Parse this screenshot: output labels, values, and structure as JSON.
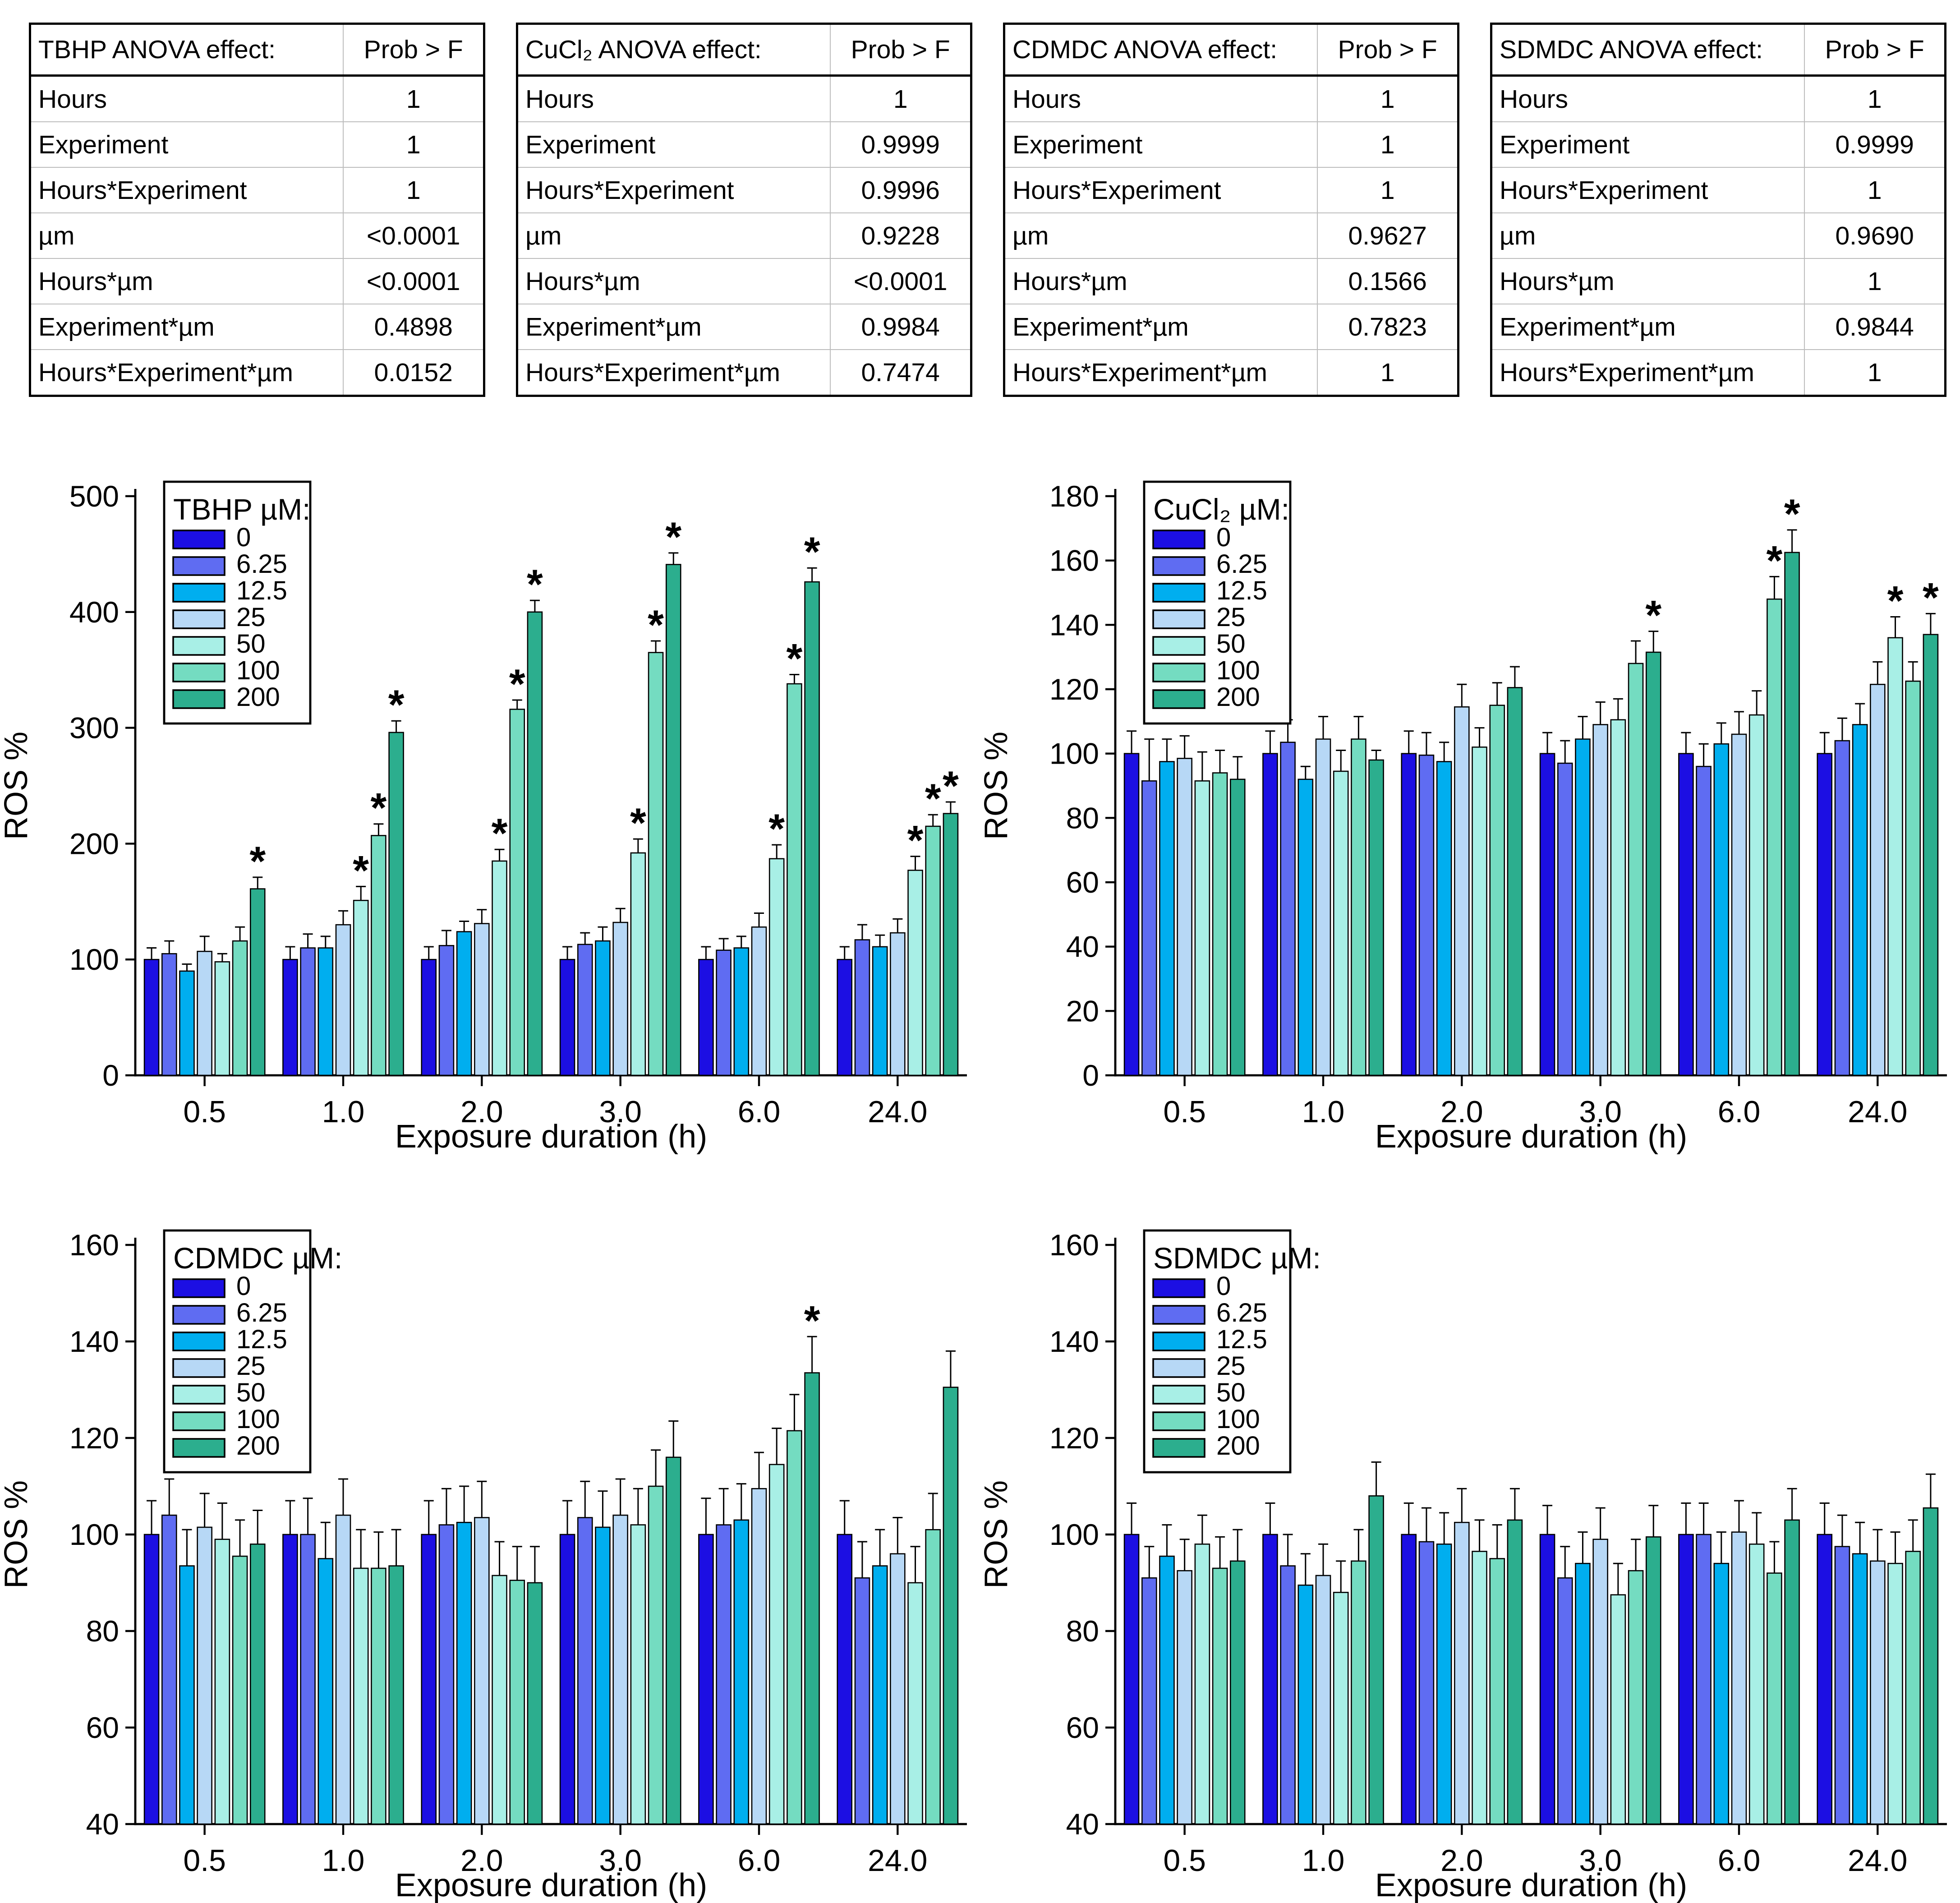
{
  "figure": {
    "background": "#ffffff",
    "text_color": "#000000"
  },
  "style": {
    "series_colors": [
      "#1c0fe3",
      "#5f6cf2",
      "#00aeef",
      "#b7d8f6",
      "#a8efe6",
      "#74dcc1",
      "#2cae8e"
    ],
    "bar_outline": "#000000",
    "axis_color": "#000000",
    "error_bar_color": "#000000",
    "table_border": "#000000",
    "table_grid": "#bdbdbd",
    "sig_marker": "*"
  },
  "anova_tables": [
    {
      "title": "TBHP ANOVA effect:",
      "prob_header": "Prob > F",
      "rows": [
        {
          "effect": "Hours",
          "value": "1"
        },
        {
          "effect": "Experiment",
          "value": "1"
        },
        {
          "effect": "Hours*Experiment",
          "value": "1"
        },
        {
          "effect": "µm",
          "value": "<0.0001"
        },
        {
          "effect": "Hours*µm",
          "value": "<0.0001"
        },
        {
          "effect": "Experiment*µm",
          "value": "0.4898"
        },
        {
          "effect": "Hours*Experiment*µm",
          "value": "0.0152"
        }
      ]
    },
    {
      "title": "CuCl₂ ANOVA effect:",
      "prob_header": "Prob > F",
      "rows": [
        {
          "effect": "Hours",
          "value": "1"
        },
        {
          "effect": "Experiment",
          "value": "0.9999"
        },
        {
          "effect": "Hours*Experiment",
          "value": "0.9996"
        },
        {
          "effect": "µm",
          "value": "0.9228"
        },
        {
          "effect": "Hours*µm",
          "value": "<0.0001"
        },
        {
          "effect": "Experiment*µm",
          "value": "0.9984"
        },
        {
          "effect": "Hours*Experiment*µm",
          "value": "0.7474"
        }
      ]
    },
    {
      "title": "CDMDC ANOVA effect:",
      "prob_header": "Prob > F",
      "rows": [
        {
          "effect": "Hours",
          "value": "1"
        },
        {
          "effect": "Experiment",
          "value": "1"
        },
        {
          "effect": "Hours*Experiment",
          "value": "1"
        },
        {
          "effect": "µm",
          "value": "0.9627"
        },
        {
          "effect": "Hours*µm",
          "value": "0.1566"
        },
        {
          "effect": "Experiment*µm",
          "value": "0.7823"
        },
        {
          "effect": "Hours*Experiment*µm",
          "value": "1"
        }
      ]
    },
    {
      "title": "SDMDC ANOVA effect:",
      "prob_header": "Prob > F",
      "rows": [
        {
          "effect": "Hours",
          "value": "1"
        },
        {
          "effect": "Experiment",
          "value": "0.9999"
        },
        {
          "effect": "Hours*Experiment",
          "value": "1"
        },
        {
          "effect": "µm",
          "value": "0.9690"
        },
        {
          "effect": "Hours*µm",
          "value": "1"
        },
        {
          "effect": "Experiment*µm",
          "value": "0.9844"
        },
        {
          "effect": "Hours*Experiment*µm",
          "value": "1"
        }
      ]
    }
  ],
  "chart_data": [
    {
      "type": "bar",
      "legend_title": "TBHP µM:",
      "xlabel": "Exposure duration (h)",
      "ylabel": "ROS %",
      "ylim": [
        0,
        500
      ],
      "yticks": [
        0,
        100,
        200,
        300,
        400,
        500
      ],
      "grid": false,
      "legend_position": "top-left-inside",
      "categories": [
        "0.5",
        "1.0",
        "2.0",
        "3.0",
        "6.0",
        "24.0"
      ],
      "series": [
        {
          "name": "0",
          "values": [
            100,
            100,
            100,
            100,
            100,
            100
          ],
          "errors": [
            10,
            11,
            11,
            11,
            11,
            11
          ],
          "sig": [
            0,
            0,
            0,
            0,
            0,
            0
          ]
        },
        {
          "name": "6.25",
          "values": [
            105,
            110,
            112,
            113,
            108,
            117
          ],
          "errors": [
            11,
            12,
            13,
            10,
            10,
            13
          ],
          "sig": [
            0,
            0,
            0,
            0,
            0,
            0
          ]
        },
        {
          "name": "12.5",
          "values": [
            90,
            110,
            124,
            116,
            110,
            111
          ],
          "errors": [
            6,
            10,
            9,
            12,
            10,
            10
          ],
          "sig": [
            0,
            0,
            0,
            0,
            0,
            0
          ]
        },
        {
          "name": "25",
          "values": [
            107,
            130,
            131,
            132,
            128,
            123
          ],
          "errors": [
            13,
            12,
            12,
            12,
            12,
            12
          ],
          "sig": [
            0,
            0,
            0,
            0,
            0,
            0
          ]
        },
        {
          "name": "50",
          "values": [
            98,
            151,
            185,
            192,
            187,
            177
          ],
          "errors": [
            7,
            12,
            10,
            12,
            12,
            12
          ],
          "sig": [
            0,
            1,
            1,
            1,
            1,
            1
          ]
        },
        {
          "name": "100",
          "values": [
            116,
            207,
            316,
            365,
            338,
            215
          ],
          "errors": [
            12,
            10,
            8,
            10,
            8,
            10
          ],
          "sig": [
            0,
            1,
            1,
            1,
            1,
            1
          ]
        },
        {
          "name": "200",
          "values": [
            161,
            296,
            400,
            441,
            426,
            226
          ],
          "errors": [
            10,
            10,
            10,
            10,
            12,
            10
          ],
          "sig": [
            1,
            1,
            1,
            1,
            1,
            1
          ]
        }
      ]
    },
    {
      "type": "bar",
      "legend_title": "CuCl₂ µM:",
      "xlabel": "Exposure duration (h)",
      "ylabel": "ROS %",
      "ylim": [
        0,
        180
      ],
      "yticks": [
        0,
        20,
        40,
        60,
        80,
        100,
        120,
        140,
        160,
        180
      ],
      "grid": false,
      "legend_position": "top-left-inside",
      "categories": [
        "0.5",
        "1.0",
        "2.0",
        "3.0",
        "6.0",
        "24.0"
      ],
      "series": [
        {
          "name": "0",
          "values": [
            100,
            100,
            100,
            100,
            100,
            100
          ],
          "errors": [
            7,
            7,
            7,
            6.5,
            6.5,
            6.5
          ],
          "sig": [
            0,
            0,
            0,
            0,
            0,
            0
          ]
        },
        {
          "name": "6.25",
          "values": [
            91.5,
            103.5,
            99.5,
            97,
            96,
            104
          ],
          "errors": [
            13,
            7,
            7,
            7,
            7,
            7
          ],
          "sig": [
            0,
            0,
            0,
            0,
            0,
            0
          ]
        },
        {
          "name": "12.5",
          "values": [
            97.5,
            92,
            97.5,
            104.5,
            103,
            109
          ],
          "errors": [
            7,
            4,
            6,
            7,
            6.5,
            6.5
          ],
          "sig": [
            0,
            0,
            0,
            0,
            0,
            0
          ]
        },
        {
          "name": "25",
          "values": [
            98.5,
            104.5,
            114.5,
            109,
            106,
            121.5
          ],
          "errors": [
            7,
            7,
            7,
            7,
            7,
            7
          ],
          "sig": [
            0,
            0,
            0,
            0,
            0,
            0
          ]
        },
        {
          "name": "50",
          "values": [
            91.5,
            94.5,
            102,
            110.5,
            112,
            136
          ],
          "errors": [
            9,
            6.5,
            6,
            6.5,
            7.5,
            6.5
          ],
          "sig": [
            0,
            0,
            0,
            0,
            0,
            1
          ]
        },
        {
          "name": "100",
          "values": [
            94,
            104.5,
            115,
            128,
            148,
            122.5
          ],
          "errors": [
            7,
            7,
            7,
            7,
            7,
            6
          ],
          "sig": [
            0,
            0,
            0,
            0,
            1,
            0
          ]
        },
        {
          "name": "200",
          "values": [
            92,
            98,
            120.5,
            131.5,
            162.5,
            137
          ],
          "errors": [
            7,
            3,
            6.5,
            6.5,
            7,
            6.5
          ],
          "sig": [
            0,
            0,
            0,
            1,
            1,
            1
          ]
        }
      ]
    },
    {
      "type": "bar",
      "legend_title": "CDMDC µM:",
      "xlabel": "Exposure duration (h)",
      "ylabel": "ROS %",
      "ylim": [
        40,
        160
      ],
      "yticks": [
        40,
        60,
        80,
        100,
        120,
        140,
        160
      ],
      "grid": false,
      "legend_position": "top-left-inside",
      "categories": [
        "0.5",
        "1.0",
        "2.0",
        "3.0",
        "6.0",
        "24.0"
      ],
      "series": [
        {
          "name": "0",
          "values": [
            100,
            100,
            100,
            100,
            100,
            100
          ],
          "errors": [
            7,
            7,
            7,
            7,
            7.5,
            7
          ],
          "sig": [
            0,
            0,
            0,
            0,
            0,
            0
          ]
        },
        {
          "name": "6.25",
          "values": [
            104,
            100,
            102,
            103.5,
            102,
            91
          ],
          "errors": [
            7.5,
            7.5,
            7.5,
            7.5,
            7.5,
            7.5
          ],
          "sig": [
            0,
            0,
            0,
            0,
            0,
            0
          ]
        },
        {
          "name": "12.5",
          "values": [
            93.5,
            95,
            102.5,
            101.5,
            103,
            93.5
          ],
          "errors": [
            7.5,
            7.5,
            7.5,
            7.5,
            7.5,
            7.5
          ],
          "sig": [
            0,
            0,
            0,
            0,
            0,
            0
          ]
        },
        {
          "name": "25",
          "values": [
            101.5,
            104,
            103.5,
            104,
            109.5,
            96
          ],
          "errors": [
            7,
            7.5,
            7.5,
            7.5,
            7.5,
            7.5
          ],
          "sig": [
            0,
            0,
            0,
            0,
            0,
            0
          ]
        },
        {
          "name": "50",
          "values": [
            99,
            93,
            91.5,
            102,
            114.5,
            90
          ],
          "errors": [
            7.5,
            8,
            7,
            7.5,
            7.5,
            7.5
          ],
          "sig": [
            0,
            0,
            0,
            0,
            0,
            0
          ]
        },
        {
          "name": "100",
          "values": [
            95.5,
            93,
            90.5,
            110,
            121.5,
            101
          ],
          "errors": [
            7.5,
            7.5,
            7,
            7.5,
            7.5,
            7.5
          ],
          "sig": [
            0,
            0,
            0,
            0,
            0,
            0
          ]
        },
        {
          "name": "200",
          "values": [
            98,
            93.5,
            90,
            116,
            133.5,
            130.5
          ],
          "errors": [
            7,
            7.5,
            7.5,
            7.5,
            7.5,
            7.5
          ],
          "sig": [
            0,
            0,
            0,
            0,
            1,
            0
          ]
        }
      ]
    },
    {
      "type": "bar",
      "legend_title": "SDMDC µM:",
      "xlabel": "Exposure duration (h)",
      "ylabel": "ROS %",
      "ylim": [
        40,
        160
      ],
      "yticks": [
        40,
        60,
        80,
        100,
        120,
        140,
        160
      ],
      "grid": false,
      "legend_position": "top-left-inside",
      "categories": [
        "0.5",
        "1.0",
        "2.0",
        "3.0",
        "6.0",
        "24.0"
      ],
      "series": [
        {
          "name": "0",
          "values": [
            100,
            100,
            100,
            100,
            100,
            100
          ],
          "errors": [
            6.5,
            6.5,
            6.5,
            6,
            6.5,
            6.5
          ],
          "sig": [
            0,
            0,
            0,
            0,
            0,
            0
          ]
        },
        {
          "name": "6.25",
          "values": [
            91,
            93.5,
            98.5,
            91,
            100,
            97.5
          ],
          "errors": [
            6.5,
            6.5,
            7,
            6.5,
            6.5,
            6.5
          ],
          "sig": [
            0,
            0,
            0,
            0,
            0,
            0
          ]
        },
        {
          "name": "12.5",
          "values": [
            95.5,
            89.5,
            98,
            94,
            94,
            96
          ],
          "errors": [
            6.5,
            6.5,
            6.5,
            6.5,
            6.5,
            6.5
          ],
          "sig": [
            0,
            0,
            0,
            0,
            0,
            0
          ]
        },
        {
          "name": "25",
          "values": [
            92.5,
            91.5,
            102.5,
            99,
            100.5,
            94.5
          ],
          "errors": [
            6.5,
            6.5,
            7,
            6.5,
            6.5,
            6.5
          ],
          "sig": [
            0,
            0,
            0,
            0,
            0,
            0
          ]
        },
        {
          "name": "50",
          "values": [
            98,
            88,
            96.5,
            87.5,
            98,
            94
          ],
          "errors": [
            6,
            6.5,
            6.5,
            6.5,
            6.5,
            6.5
          ],
          "sig": [
            0,
            0,
            0,
            0,
            0,
            0
          ]
        },
        {
          "name": "100",
          "values": [
            93,
            94.5,
            95,
            92.5,
            92,
            96.5
          ],
          "errors": [
            6.5,
            6.5,
            7,
            6.5,
            6.5,
            6.5
          ],
          "sig": [
            0,
            0,
            0,
            0,
            0,
            0
          ]
        },
        {
          "name": "200",
          "values": [
            94.5,
            108,
            103,
            99.5,
            103,
            105.5
          ],
          "errors": [
            6.5,
            7,
            6.5,
            6.5,
            6.5,
            7
          ],
          "sig": [
            0,
            0,
            0,
            0,
            0,
            0
          ]
        }
      ]
    }
  ]
}
